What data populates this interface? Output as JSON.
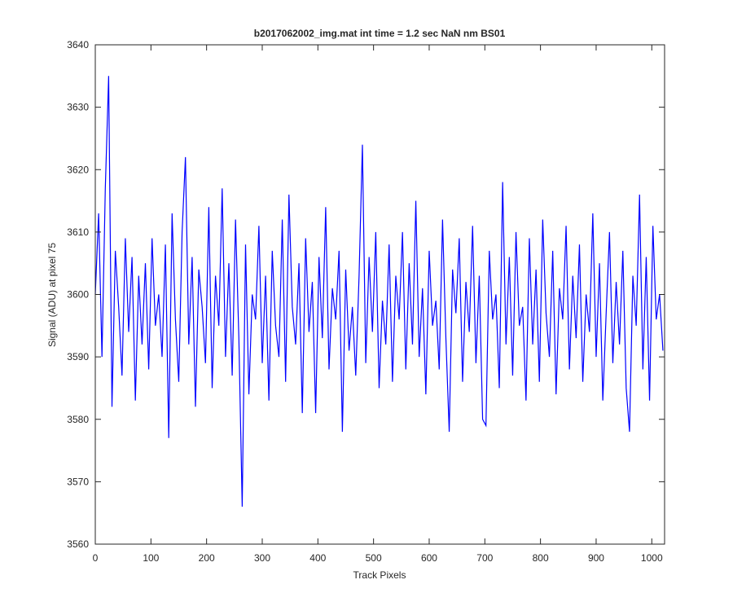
{
  "chart_data": {
    "type": "line",
    "title": "b2017062002_img.mat int time = 1.2 sec  NaN nm BS01",
    "xlabel": "Track Pixels",
    "ylabel": "Signal (ADU) at pixel 75",
    "color": "#0000ff",
    "xlim": [
      0,
      1023
    ],
    "ylim": [
      3560,
      3640
    ],
    "xticks": [
      0,
      100,
      200,
      300,
      400,
      500,
      600,
      700,
      800,
      900,
      1000
    ],
    "yticks": [
      3560,
      3570,
      3580,
      3590,
      3600,
      3610,
      3620,
      3630,
      3640
    ],
    "x": [
      0,
      6,
      12,
      18,
      24,
      30,
      36,
      42,
      48,
      54,
      60,
      66,
      72,
      78,
      84,
      90,
      96,
      102,
      108,
      114,
      120,
      126,
      132,
      138,
      144,
      150,
      156,
      162,
      168,
      174,
      180,
      186,
      192,
      198,
      204,
      210,
      216,
      222,
      228,
      234,
      240,
      246,
      252,
      258,
      264,
      270,
      276,
      282,
      288,
      294,
      300,
      306,
      312,
      318,
      324,
      330,
      336,
      342,
      348,
      354,
      360,
      366,
      372,
      378,
      384,
      390,
      396,
      402,
      408,
      414,
      420,
      426,
      432,
      438,
      444,
      450,
      456,
      462,
      468,
      474,
      480,
      486,
      492,
      498,
      504,
      510,
      516,
      522,
      528,
      534,
      540,
      546,
      552,
      558,
      564,
      570,
      576,
      582,
      588,
      594,
      600,
      606,
      612,
      618,
      624,
      630,
      636,
      642,
      648,
      654,
      660,
      666,
      672,
      678,
      684,
      690,
      696,
      702,
      708,
      714,
      720,
      726,
      732,
      738,
      744,
      750,
      756,
      762,
      768,
      774,
      780,
      786,
      792,
      798,
      804,
      810,
      816,
      822,
      828,
      834,
      840,
      846,
      852,
      858,
      864,
      870,
      876,
      882,
      888,
      894,
      900,
      906,
      912,
      918,
      924,
      930,
      936,
      942,
      948,
      954,
      960,
      966,
      972,
      978,
      984,
      990,
      996,
      1002,
      1008,
      1014,
      1020
    ],
    "values": [
      3600,
      3613,
      3590,
      3617,
      3635,
      3582,
      3607,
      3598,
      3587,
      3609,
      3594,
      3606,
      3583,
      3603,
      3592,
      3605,
      3588,
      3609,
      3595,
      3600,
      3590,
      3608,
      3577,
      3613,
      3596,
      3586,
      3610,
      3622,
      3592,
      3606,
      3582,
      3604,
      3598,
      3589,
      3614,
      3585,
      3603,
      3595,
      3617,
      3590,
      3605,
      3587,
      3612,
      3593,
      3566,
      3608,
      3584,
      3600,
      3596,
      3611,
      3589,
      3603,
      3583,
      3607,
      3595,
      3590,
      3612,
      3586,
      3616,
      3598,
      3592,
      3605,
      3581,
      3609,
      3594,
      3602,
      3581,
      3606,
      3593,
      3614,
      3588,
      3601,
      3596,
      3607,
      3578,
      3604,
      3591,
      3598,
      3587,
      3603,
      3624,
      3589,
      3606,
      3594,
      3610,
      3585,
      3599,
      3592,
      3608,
      3586,
      3603,
      3596,
      3610,
      3588,
      3605,
      3592,
      3615,
      3590,
      3601,
      3584,
      3607,
      3595,
      3599,
      3588,
      3612,
      3593,
      3578,
      3604,
      3597,
      3609,
      3586,
      3602,
      3594,
      3611,
      3589,
      3603,
      3580,
      3579,
      3607,
      3596,
      3600,
      3585,
      3618,
      3592,
      3606,
      3587,
      3610,
      3595,
      3598,
      3583,
      3609,
      3592,
      3604,
      3586,
      3612,
      3597,
      3590,
      3607,
      3584,
      3601,
      3596,
      3611,
      3588,
      3603,
      3593,
      3608,
      3586,
      3600,
      3594,
      3613,
      3590,
      3605,
      3583,
      3597,
      3610,
      3589,
      3602,
      3592,
      3607,
      3585,
      3578,
      3603,
      3595,
      3616,
      3588,
      3606,
      3583,
      3611,
      3596,
      3600,
      3591
    ]
  }
}
